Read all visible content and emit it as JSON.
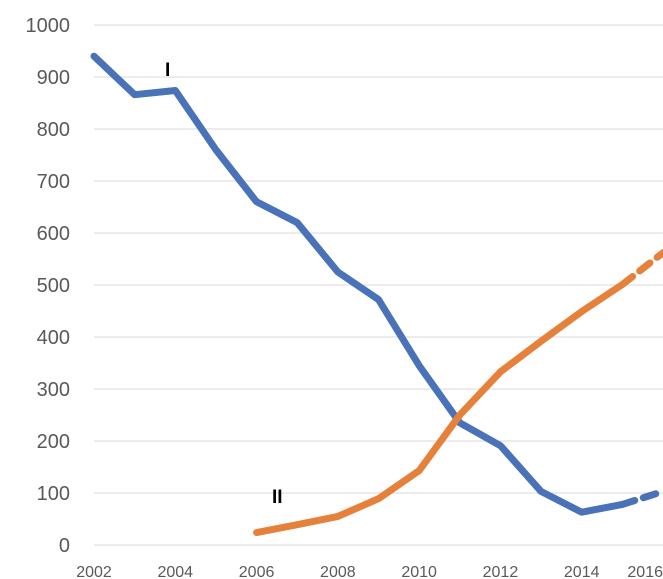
{
  "chart_data": {
    "type": "line",
    "title": "",
    "xlabel": "",
    "ylabel": "",
    "xlim": [
      2002,
      2016
    ],
    "ylim": [
      0,
      1000
    ],
    "y_ticks": [
      "0",
      "100",
      "200",
      "300",
      "400",
      "500",
      "600",
      "700",
      "800",
      "900",
      "1000"
    ],
    "x_ticks": [
      "2002",
      "2004",
      "2006",
      "2008",
      "2010",
      "2012",
      "2014",
      "2016"
    ],
    "grid": "horizontal",
    "series": [
      {
        "label": "I",
        "color": "#4a72b8",
        "solid": [
          [
            2002,
            940
          ],
          [
            2003,
            866
          ],
          [
            2004,
            874
          ],
          [
            2005,
            760
          ],
          [
            2006,
            660
          ],
          [
            2007,
            620
          ],
          [
            2008,
            525
          ],
          [
            2009,
            472
          ],
          [
            2010,
            345
          ],
          [
            2011,
            235
          ],
          [
            2012,
            191
          ],
          [
            2013,
            103
          ],
          [
            2014,
            63
          ],
          [
            2015,
            78
          ]
        ],
        "dashed": [
          [
            2015,
            78
          ],
          [
            2016,
            103
          ]
        ]
      },
      {
        "label": "II",
        "color": "#e5813a",
        "solid": [
          [
            2006,
            24
          ],
          [
            2007,
            39
          ],
          [
            2008,
            55
          ],
          [
            2009,
            89
          ],
          [
            2010,
            143
          ],
          [
            2011,
            250
          ],
          [
            2012,
            333
          ],
          [
            2013,
            392
          ],
          [
            2014,
            449
          ],
          [
            2015,
            501
          ]
        ],
        "dashed": [
          [
            2015,
            501
          ],
          [
            2016,
            562
          ]
        ]
      }
    ]
  }
}
